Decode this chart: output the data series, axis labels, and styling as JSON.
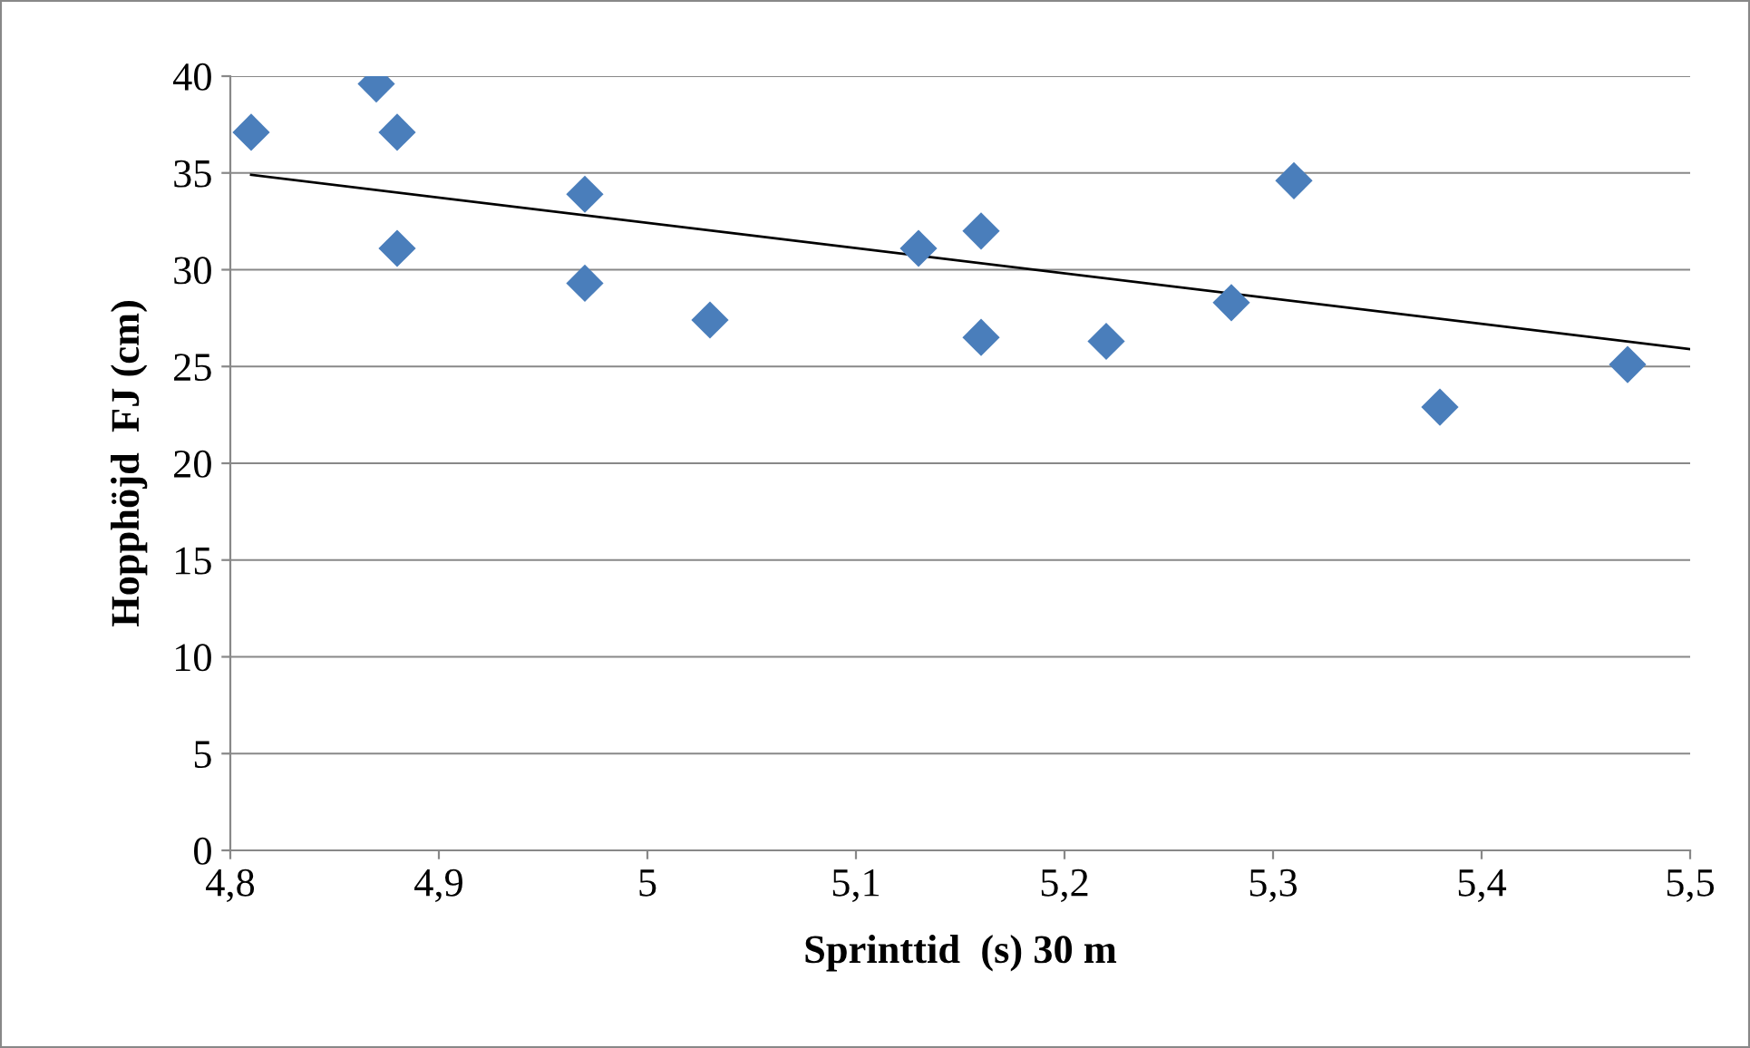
{
  "chart_data": {
    "type": "scatter",
    "xlabel": "Sprinttid  (s) 30 m",
    "ylabel": "Hopphöjd  FJ (cm)",
    "x": [
      4.81,
      4.87,
      4.88,
      4.88,
      4.97,
      4.97,
      5.03,
      5.13,
      5.16,
      5.16,
      5.22,
      5.28,
      5.31,
      5.38,
      5.47
    ],
    "series": [
      {
        "color": "#4a7ebb",
        "marker": "diamond",
        "values": [
          37.1,
          39.6,
          37.1,
          31.1,
          33.9,
          29.3,
          27.4,
          31.1,
          32.0,
          26.5,
          26.3,
          28.3,
          34.6,
          22.9,
          25.1
        ]
      },
      {
        "type": "line",
        "color": "#000000",
        "marker": "none",
        "x": [
          4.81,
          5.5
        ],
        "values": [
          34.9,
          25.9
        ]
      }
    ],
    "xlim": [
      4.8,
      5.5
    ],
    "xticks": [
      {
        "value": 4.8,
        "label": "4,8"
      },
      {
        "value": 4.9,
        "label": "4,9"
      },
      {
        "value": 5,
        "label": "5"
      },
      {
        "value": 5.1,
        "label": "5,1"
      },
      {
        "value": 5.2,
        "label": "5,2"
      },
      {
        "value": 5.3,
        "label": "5,3"
      },
      {
        "value": 5.4,
        "label": "5,4"
      },
      {
        "value": 5.5,
        "label": "5,5"
      }
    ],
    "ylim": [
      0,
      40
    ],
    "yticks": [
      0,
      5,
      10,
      15,
      20,
      25,
      30,
      35,
      40
    ],
    "grid": "y"
  }
}
